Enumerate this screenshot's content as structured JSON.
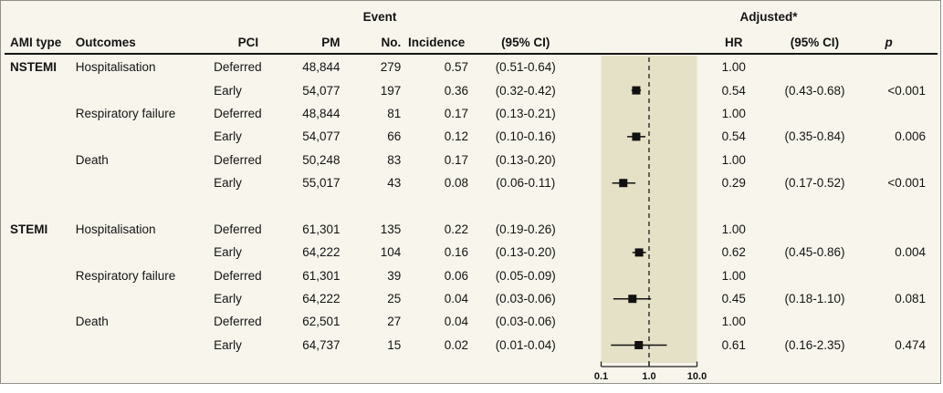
{
  "header": {
    "group_event": "Event",
    "group_adjusted": "Adjusted*",
    "cols": {
      "ami": "AMI type",
      "outcomes": "Outcomes",
      "pci": "PCI",
      "pm": "PM",
      "no": "No.",
      "incidence": "Incidence",
      "ci": "(95% CI)",
      "hr": "HR",
      "hr_ci": "(95% CI)",
      "p": "p"
    }
  },
  "rows": [
    {
      "ami": "NSTEMI",
      "outcome": "Hospitalisation",
      "pci": "Deferred",
      "pm": "48,844",
      "no": "279",
      "incidence": "0.57",
      "ci": "(0.51-0.64)",
      "hr": "1.00",
      "hr_ci": "",
      "p": ""
    },
    {
      "ami": "",
      "outcome": "",
      "pci": "Early",
      "pm": "54,077",
      "no": "197",
      "incidence": "0.36",
      "ci": "(0.32-0.42)",
      "hr": "0.54",
      "hr_ci": "(0.43-0.68)",
      "p": "<0.001"
    },
    {
      "ami": "",
      "outcome": "Respiratory failure",
      "pci": "Deferred",
      "pm": "48,844",
      "no": "81",
      "incidence": "0.17",
      "ci": "(0.13-0.21)",
      "hr": "1.00",
      "hr_ci": "",
      "p": ""
    },
    {
      "ami": "",
      "outcome": "",
      "pci": "Early",
      "pm": "54,077",
      "no": "66",
      "incidence": "0.12",
      "ci": "(0.10-0.16)",
      "hr": "0.54",
      "hr_ci": "(0.35-0.84)",
      "p": "0.006"
    },
    {
      "ami": "",
      "outcome": "Death",
      "pci": "Deferred",
      "pm": "50,248",
      "no": "83",
      "incidence": "0.17",
      "ci": "(0.13-0.20)",
      "hr": "1.00",
      "hr_ci": "",
      "p": ""
    },
    {
      "ami": "",
      "outcome": "",
      "pci": "Early",
      "pm": "55,017",
      "no": "43",
      "incidence": "0.08",
      "ci": "(0.06-0.11)",
      "hr": "0.29",
      "hr_ci": "(0.17-0.52)",
      "p": "<0.001"
    },
    {
      "ami": "",
      "outcome": "",
      "pci": "",
      "pm": "",
      "no": "",
      "incidence": "",
      "ci": "",
      "hr": "",
      "hr_ci": "",
      "p": ""
    },
    {
      "ami": "STEMI",
      "outcome": "Hospitalisation",
      "pci": "Deferred",
      "pm": "61,301",
      "no": "135",
      "incidence": "0.22",
      "ci": "(0.19-0.26)",
      "hr": "1.00",
      "hr_ci": "",
      "p": ""
    },
    {
      "ami": "",
      "outcome": "",
      "pci": "Early",
      "pm": "64,222",
      "no": "104",
      "incidence": "0.16",
      "ci": "(0.13-0.20)",
      "hr": "0.62",
      "hr_ci": "(0.45-0.86)",
      "p": "0.004"
    },
    {
      "ami": "",
      "outcome": "Respiratory failure",
      "pci": "Deferred",
      "pm": "61,301",
      "no": "39",
      "incidence": "0.06",
      "ci": "(0.05-0.09)",
      "hr": "1.00",
      "hr_ci": "",
      "p": ""
    },
    {
      "ami": "",
      "outcome": "",
      "pci": "Early",
      "pm": "64,222",
      "no": "25",
      "incidence": "0.04",
      "ci": "(0.03-0.06)",
      "hr": "0.45",
      "hr_ci": "(0.18-1.10)",
      "p": "0.081"
    },
    {
      "ami": "",
      "outcome": "Death",
      "pci": "Deferred",
      "pm": "62,501",
      "no": "27",
      "incidence": "0.04",
      "ci": "(0.03-0.06)",
      "hr": "1.00",
      "hr_ci": "",
      "p": ""
    },
    {
      "ami": "",
      "outcome": "",
      "pci": "Early",
      "pm": "64,737",
      "no": "15",
      "incidence": "0.02",
      "ci": "(0.01-0.04)",
      "hr": "0.61",
      "hr_ci": "(0.16-2.35)",
      "p": "0.474"
    }
  ],
  "chart_data": {
    "type": "forest",
    "x_scale": "log",
    "x_min": 0.1,
    "x_max": 10,
    "ref_line": 1.0,
    "x_ticks": [
      {
        "v": 0.1,
        "label": "0.1"
      },
      {
        "v": 1.0,
        "label": "1.0"
      },
      {
        "v": 10.0,
        "label": "10.0"
      }
    ],
    "points": [
      {
        "row": 1,
        "label": "NSTEMI Hospitalisation Early",
        "hr": 0.54,
        "lo": 0.43,
        "hi": 0.68
      },
      {
        "row": 3,
        "label": "NSTEMI Respiratory failure Early",
        "hr": 0.54,
        "lo": 0.35,
        "hi": 0.84
      },
      {
        "row": 5,
        "label": "NSTEMI Death Early",
        "hr": 0.29,
        "lo": 0.17,
        "hi": 0.52
      },
      {
        "row": 8,
        "label": "STEMI Hospitalisation Early",
        "hr": 0.62,
        "lo": 0.45,
        "hi": 0.86
      },
      {
        "row": 10,
        "label": "STEMI Respiratory failure Early",
        "hr": 0.45,
        "lo": 0.18,
        "hi": 1.1
      },
      {
        "row": 12,
        "label": "STEMI Death Early",
        "hr": 0.61,
        "lo": 0.16,
        "hi": 2.35
      }
    ]
  },
  "colors": {
    "figure_bg": "#f7f5ec",
    "plot_bg": "#e5e1c6",
    "text": "#141414",
    "border": "#8f8f8c",
    "marker": "#111111"
  }
}
